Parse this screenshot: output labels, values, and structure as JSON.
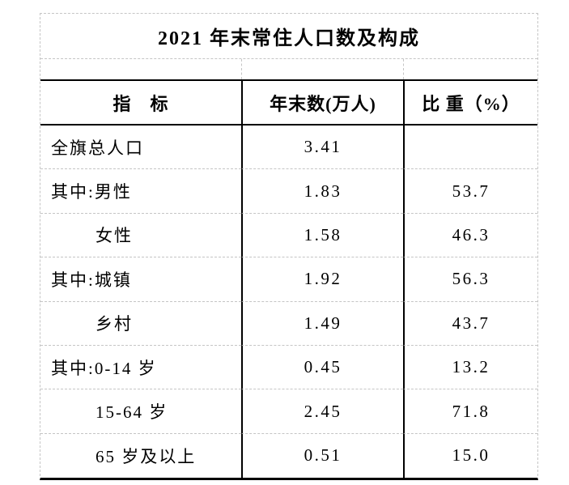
{
  "title": "2021 年末常住人口数及构成",
  "colors": {
    "background": "#ffffff",
    "text": "#000000",
    "solid_rule": "#000000",
    "dashed_gridline": "#c5c5c5"
  },
  "table": {
    "columns": [
      "指　标",
      "年末数(万人)",
      "比 重（%）"
    ],
    "rows": [
      {
        "indicator": "全旗总人口",
        "value": "3.41",
        "share": "",
        "indent": false
      },
      {
        "indicator": "其中:男性",
        "value": "1.83",
        "share": "53.7",
        "indent": false
      },
      {
        "indicator": "女性",
        "value": "1.58",
        "share": "46.3",
        "indent": true
      },
      {
        "indicator": "其中:城镇",
        "value": "1.92",
        "share": "56.3",
        "indent": false
      },
      {
        "indicator": "乡村",
        "value": "1.49",
        "share": "43.7",
        "indent": true
      },
      {
        "indicator": "其中:0-14 岁",
        "value": "0.45",
        "share": "13.2",
        "indent": false
      },
      {
        "indicator": "15-64 岁",
        "value": "2.45",
        "share": "71.8",
        "indent": true
      },
      {
        "indicator": "65 岁及以上",
        "value": "0.51",
        "share": "15.0",
        "indent": true
      }
    ]
  },
  "chart_data": {
    "type": "table",
    "title": "2021 年末常住人口数及构成",
    "columns": [
      "指标",
      "年末数(万人)",
      "比重(%)"
    ],
    "rows": [
      [
        "全旗总人口",
        3.41,
        null
      ],
      [
        "其中:男性",
        1.83,
        53.7
      ],
      [
        "女性",
        1.58,
        46.3
      ],
      [
        "其中:城镇",
        1.92,
        56.3
      ],
      [
        "乡村",
        1.49,
        43.7
      ],
      [
        "其中:0-14岁",
        0.45,
        13.2
      ],
      [
        "15-64岁",
        2.45,
        71.8
      ],
      [
        "65岁及以上",
        0.51,
        15.0
      ]
    ]
  }
}
